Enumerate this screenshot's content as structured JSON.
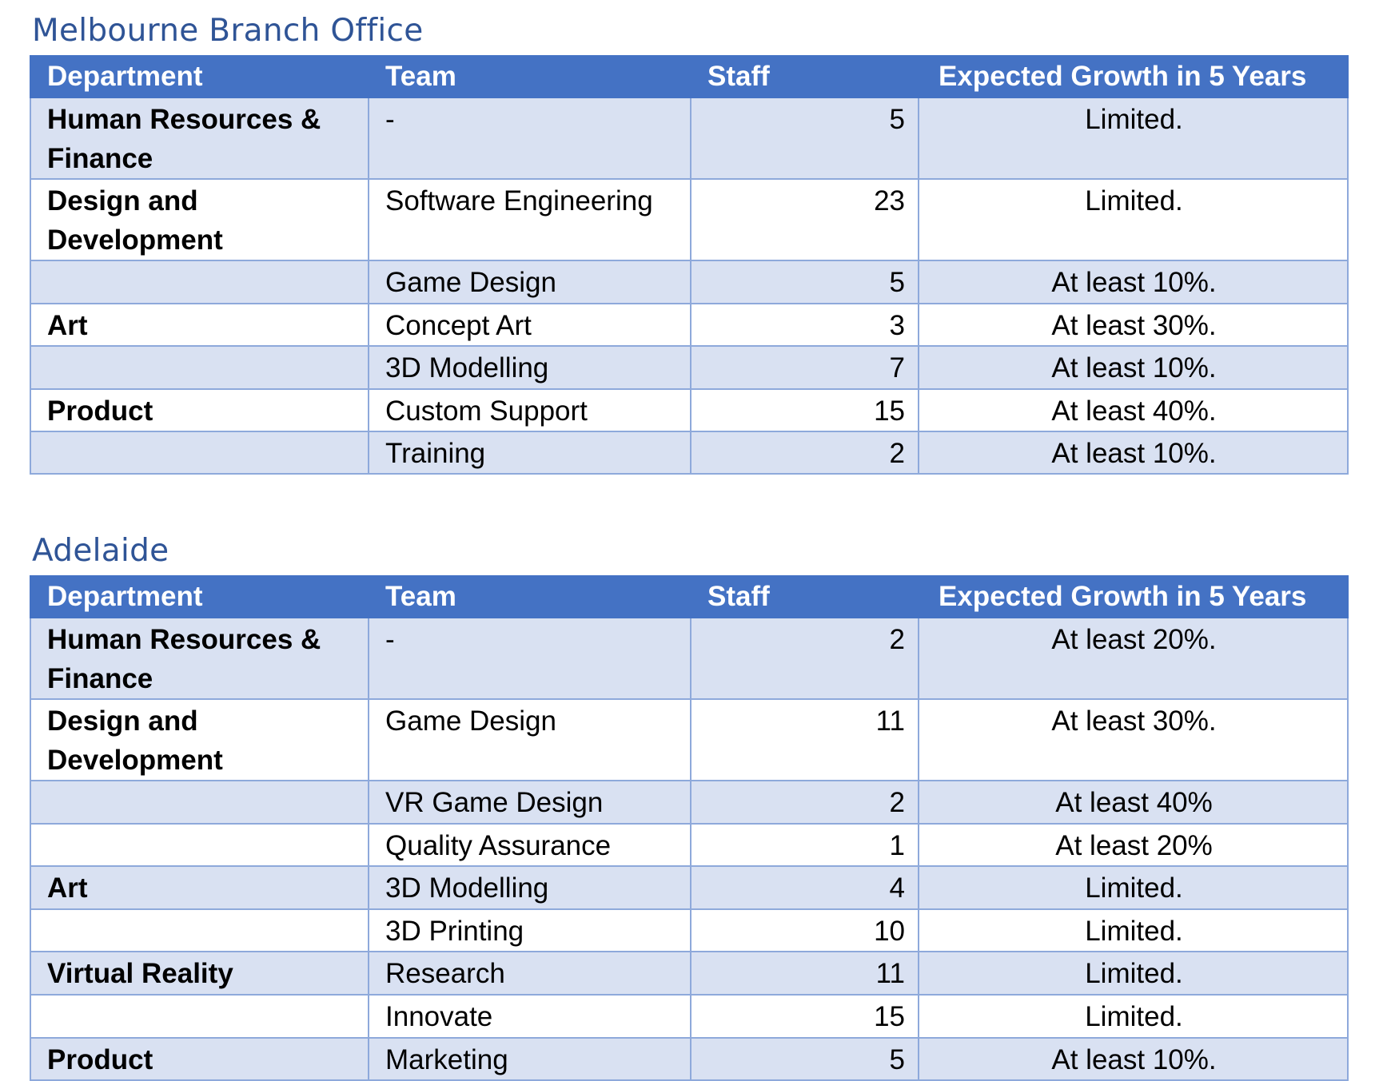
{
  "melbourne": {
    "title": "Melbourne  Branch Office",
    "headers": [
      "Department",
      "Team",
      "Staff",
      "Expected Growth in 5 Years"
    ],
    "rows": [
      {
        "department": "Human Resources & Finance",
        "team": "-",
        "staff": "5",
        "growth": "Limited."
      },
      {
        "department": "Design and Development",
        "team": "Software Engineering",
        "staff": "23",
        "growth": "Limited."
      },
      {
        "department": "",
        "team": "Game Design",
        "staff": "5",
        "growth": "At least 10%."
      },
      {
        "department": "Art",
        "team": "Concept Art",
        "staff": "3",
        "growth": "At least 30%."
      },
      {
        "department": "",
        "team": "3D Modelling",
        "staff": "7",
        "growth": "At least 10%."
      },
      {
        "department": "Product",
        "team": "Custom Support",
        "staff": "15",
        "growth": "At least 40%."
      },
      {
        "department": "",
        "team": "Training",
        "staff": "2",
        "growth": "At least 10%."
      }
    ]
  },
  "adelaide": {
    "title": "Adelaide",
    "headers": [
      "Department",
      "Team",
      "Staff",
      "Expected Growth in 5 Years"
    ],
    "rows": [
      {
        "department": "Human Resources & Finance",
        "team": "-",
        "staff": "2",
        "growth": "At least 20%."
      },
      {
        "department": "Design and Development",
        "team": "Game Design",
        "staff": "11",
        "growth": "At least 30%."
      },
      {
        "department": "",
        "team": "VR Game Design",
        "staff": "2",
        "growth": "At least 40%"
      },
      {
        "department": "",
        "team": "Quality Assurance",
        "staff": "1",
        "growth": "At least 20%"
      },
      {
        "department": "Art",
        "team": "3D Modelling",
        "staff": "4",
        "growth": "Limited."
      },
      {
        "department": "",
        "team": "3D Printing",
        "staff": "10",
        "growth": "Limited."
      },
      {
        "department": "Virtual Reality",
        "team": "Research",
        "staff": "11",
        "growth": "Limited."
      },
      {
        "department": "",
        "team": "Innovate",
        "staff": "15",
        "growth": "Limited."
      },
      {
        "department": "Product",
        "team": "Marketing",
        "staff": "5",
        "growth": "At least 10%."
      }
    ]
  }
}
